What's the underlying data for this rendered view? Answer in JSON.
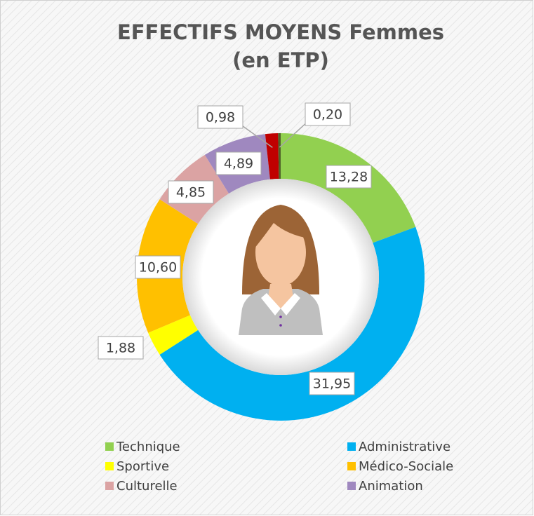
{
  "chart_data": {
    "type": "donut",
    "title": "EFFECTIFS MOYENS Femmes",
    "subtitle": "(en ETP)",
    "categories": [
      "Technique",
      "Administrative",
      "Sportive",
      "Médico-Sociale",
      "Culturelle",
      "Animation",
      null,
      null
    ],
    "values": [
      13.28,
      31.95,
      1.88,
      10.6,
      4.85,
      4.89,
      0.98,
      0.2
    ],
    "value_labels": [
      "13,28",
      "31,95",
      "1,88",
      "10,60",
      "4,85",
      "4,89",
      "0,98",
      "0,20"
    ],
    "colors": [
      "#92d050",
      "#00b0f0",
      "#ffff00",
      "#ffc000",
      "#dba3a3",
      "#9f88bf",
      "#c00000",
      "#4f6228"
    ]
  }
}
